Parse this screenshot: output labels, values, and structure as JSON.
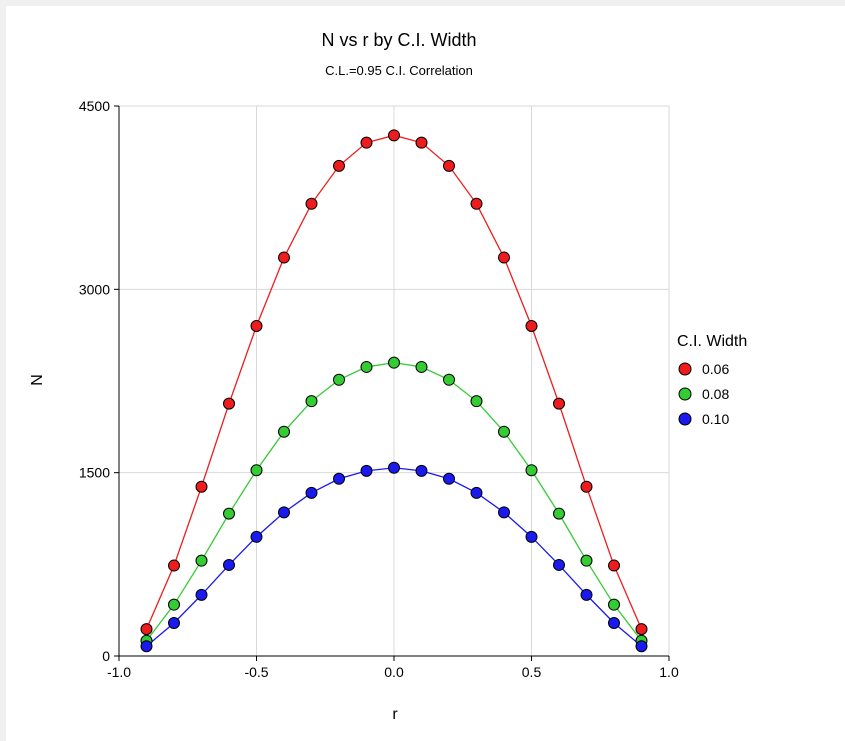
{
  "chart_data": {
    "type": "line",
    "title": "N vs r by C.I. Width",
    "subtitle": "C.L.=0.95 C.I. Correlation",
    "xlabel": "r",
    "ylabel": "N",
    "xlim": [
      -1.0,
      1.0
    ],
    "ylim": [
      0,
      4500
    ],
    "xticks": [
      "-1.0",
      "-0.5",
      "0.0",
      "0.5",
      "1.0"
    ],
    "xtick_values": [
      -1.0,
      -0.5,
      0.0,
      0.5,
      1.0
    ],
    "yticks": [
      "0",
      "1500",
      "3000",
      "4500"
    ],
    "ytick_values": [
      0,
      1500,
      3000,
      4500
    ],
    "grid": true,
    "legend_title": "C.I. Width",
    "legend_position": "right",
    "x": [
      -0.9,
      -0.8,
      -0.7,
      -0.6,
      -0.5,
      -0.4,
      -0.3,
      -0.2,
      -0.1,
      0.0,
      0.1,
      0.2,
      0.3,
      0.4,
      0.5,
      0.6,
      0.7,
      0.8,
      0.9
    ],
    "series": [
      {
        "name": "0.06",
        "color": "#ee1c1c",
        "values": [
          220,
          740,
          1385,
          2065,
          2700,
          3260,
          3700,
          4010,
          4200,
          4260,
          4200,
          4010,
          3700,
          3260,
          2700,
          2065,
          1385,
          740,
          220
        ]
      },
      {
        "name": "0.08",
        "color": "#33cc33",
        "values": [
          125,
          420,
          780,
          1165,
          1520,
          1835,
          2085,
          2260,
          2365,
          2400,
          2365,
          2260,
          2085,
          1835,
          1520,
          1165,
          780,
          420,
          125
        ]
      },
      {
        "name": "0.10",
        "color": "#1a1aee",
        "values": [
          80,
          270,
          500,
          745,
          975,
          1175,
          1335,
          1450,
          1515,
          1540,
          1515,
          1450,
          1335,
          1175,
          975,
          745,
          500,
          270,
          80
        ]
      }
    ]
  }
}
